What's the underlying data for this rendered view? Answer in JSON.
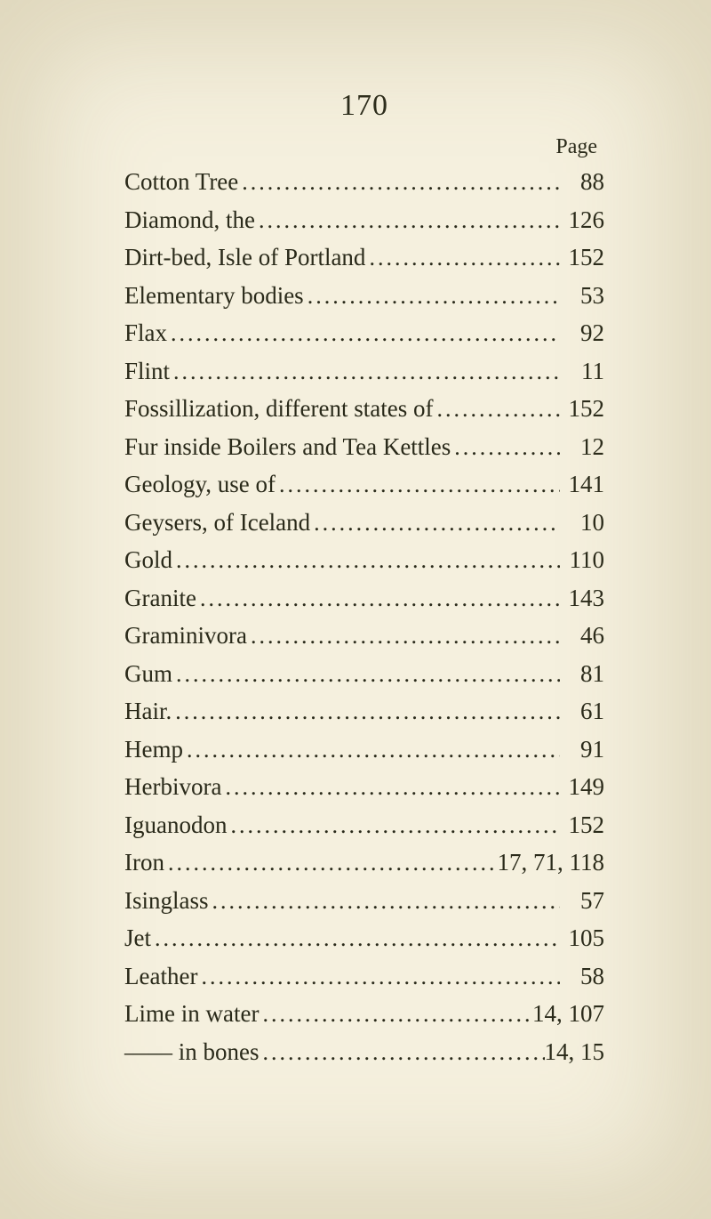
{
  "page_number": "170",
  "page_label": "Page",
  "entries": [
    {
      "text": "Cotton Tree",
      "page": "88"
    },
    {
      "text": "Diamond, the",
      "page": "126"
    },
    {
      "text": "Dirt-bed, Isle of Portland",
      "page": "152"
    },
    {
      "text": "Elementary bodies",
      "page": "53"
    },
    {
      "text": "Flax",
      "page": "92"
    },
    {
      "text": "Flint",
      "page": "11"
    },
    {
      "text": "Fossillization, different states of",
      "page": "152"
    },
    {
      "text": "Fur inside Boilers and Tea Kettles",
      "page": "12"
    },
    {
      "text": "Geology, use of",
      "page": "141"
    },
    {
      "text": "Geysers, of Iceland",
      "page": "10"
    },
    {
      "text": "Gold",
      "page": "110"
    },
    {
      "text": "Granite",
      "page": "143"
    },
    {
      "text": "Graminivora",
      "page": "46"
    },
    {
      "text": "Gum",
      "page": "81"
    },
    {
      "text": "Hair.",
      "page": "61"
    },
    {
      "text": "Hemp",
      "page": "91"
    },
    {
      "text": "Herbivora",
      "page": "149"
    },
    {
      "text": "Iguanodon",
      "page": "152"
    },
    {
      "text": "Iron",
      "page": "17, 71, 118"
    },
    {
      "text": "Isinglass",
      "page": "57"
    },
    {
      "text": "Jet",
      "page": "105"
    },
    {
      "text": "Leather",
      "page": "58"
    },
    {
      "text": "Lime in water",
      "page": "14, 107"
    },
    {
      "text": "—— in bones",
      "page": "14, 15"
    }
  ],
  "styling": {
    "background_color": "#f5f0de",
    "text_color": "#2a2a1a",
    "font_family": "Times New Roman",
    "page_number_fontsize": 34,
    "page_label_fontsize": 24,
    "entry_fontsize": 27,
    "line_spacing": 11.5,
    "dot_leader_char": ".",
    "dot_letter_spacing": 3
  }
}
